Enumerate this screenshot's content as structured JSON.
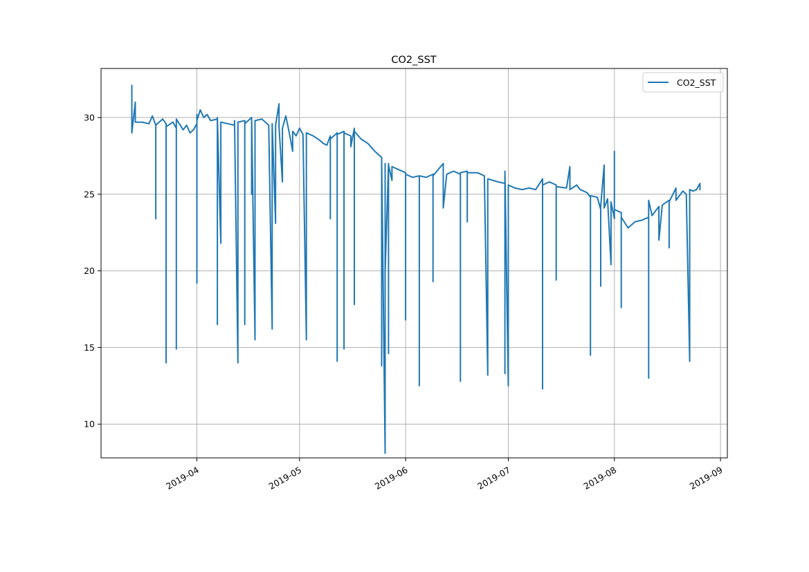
{
  "chart_data": {
    "type": "line",
    "title": "CO2_SST",
    "xlabel": "",
    "ylabel": "",
    "x_axis_type": "date",
    "xlim": [
      "2019-03-04",
      "2019-09-03"
    ],
    "ylim": [
      7.8,
      33.2
    ],
    "x_ticks": [
      {
        "date": "2019-04-01",
        "label": "2019-04"
      },
      {
        "date": "2019-05-01",
        "label": "2019-05"
      },
      {
        "date": "2019-06-01",
        "label": "2019-06"
      },
      {
        "date": "2019-07-01",
        "label": "2019-07"
      },
      {
        "date": "2019-08-01",
        "label": "2019-08"
      },
      {
        "date": "2019-09-01",
        "label": "2019-09"
      }
    ],
    "y_ticks": [
      10,
      15,
      20,
      25,
      30
    ],
    "grid": true,
    "legend_position": "upper-right",
    "legend": [
      "CO2_SST"
    ],
    "series_color": "#1f77b4",
    "series": [
      {
        "name": "CO2_SST",
        "points": [
          [
            "2019-03-13",
            30.3
          ],
          [
            "2019-03-13",
            32.1
          ],
          [
            "2019-03-13",
            29.0
          ],
          [
            "2019-03-14",
            31.0
          ],
          [
            "2019-03-14",
            29.7
          ],
          [
            "2019-03-16",
            29.7
          ],
          [
            "2019-03-18",
            29.6
          ],
          [
            "2019-03-19",
            30.1
          ],
          [
            "2019-03-20",
            29.5
          ],
          [
            "2019-03-20",
            23.4
          ],
          [
            "2019-03-20",
            29.5
          ],
          [
            "2019-03-22",
            29.9
          ],
          [
            "2019-03-23",
            29.6
          ],
          [
            "2019-03-23",
            29.4
          ],
          [
            "2019-03-23",
            14.0
          ],
          [
            "2019-03-23",
            29.4
          ],
          [
            "2019-03-25",
            29.7
          ],
          [
            "2019-03-26",
            29.3
          ],
          [
            "2019-03-26",
            14.9
          ],
          [
            "2019-03-26",
            29.9
          ],
          [
            "2019-03-28",
            29.2
          ],
          [
            "2019-03-29",
            29.5
          ],
          [
            "2019-03-30",
            29.0
          ],
          [
            "2019-03-31",
            29.2
          ],
          [
            "2019-04-01",
            29.6
          ],
          [
            "2019-04-01",
            30.2
          ],
          [
            "2019-04-01",
            19.2
          ],
          [
            "2019-04-01",
            29.8
          ],
          [
            "2019-04-02",
            30.5
          ],
          [
            "2019-04-03",
            30.0
          ],
          [
            "2019-04-04",
            30.2
          ],
          [
            "2019-04-05",
            29.8
          ],
          [
            "2019-04-07",
            29.9
          ],
          [
            "2019-04-07",
            16.5
          ],
          [
            "2019-04-07",
            30.0
          ],
          [
            "2019-04-08",
            21.8
          ],
          [
            "2019-04-08",
            29.7
          ],
          [
            "2019-04-10",
            29.6
          ],
          [
            "2019-04-12",
            29.5
          ],
          [
            "2019-04-12",
            29.8
          ],
          [
            "2019-04-13",
            14.0
          ],
          [
            "2019-04-13",
            29.7
          ],
          [
            "2019-04-15",
            29.8
          ],
          [
            "2019-04-15",
            16.5
          ],
          [
            "2019-04-15",
            29.6
          ],
          [
            "2019-04-17",
            30.0
          ],
          [
            "2019-04-17",
            25.0
          ],
          [
            "2019-04-17",
            30.0
          ],
          [
            "2019-04-18",
            15.5
          ],
          [
            "2019-04-18",
            29.8
          ],
          [
            "2019-04-20",
            29.9
          ],
          [
            "2019-04-22",
            29.5
          ],
          [
            "2019-04-23",
            16.2
          ],
          [
            "2019-04-23",
            29.6
          ],
          [
            "2019-04-24",
            23.1
          ],
          [
            "2019-04-24",
            29.5
          ],
          [
            "2019-04-25",
            30.9
          ],
          [
            "2019-04-25",
            29.4
          ],
          [
            "2019-04-26",
            25.8
          ],
          [
            "2019-04-26",
            29.3
          ],
          [
            "2019-04-27",
            30.1
          ],
          [
            "2019-04-28",
            29.0
          ],
          [
            "2019-04-29",
            27.8
          ],
          [
            "2019-04-29",
            29.1
          ],
          [
            "2019-04-30",
            28.8
          ],
          [
            "2019-05-01",
            29.3
          ],
          [
            "2019-05-02",
            28.9
          ],
          [
            "2019-05-03",
            15.5
          ],
          [
            "2019-05-03",
            29.0
          ],
          [
            "2019-05-05",
            28.8
          ],
          [
            "2019-05-07",
            28.5
          ],
          [
            "2019-05-08",
            28.3
          ],
          [
            "2019-05-09",
            28.2
          ],
          [
            "2019-05-10",
            28.8
          ],
          [
            "2019-05-10",
            23.4
          ],
          [
            "2019-05-10",
            28.6
          ],
          [
            "2019-05-12",
            29.0
          ],
          [
            "2019-05-12",
            14.1
          ],
          [
            "2019-05-12",
            28.9
          ],
          [
            "2019-05-14",
            29.1
          ],
          [
            "2019-05-14",
            14.9
          ],
          [
            "2019-05-14",
            29.0
          ],
          [
            "2019-05-16",
            28.8
          ],
          [
            "2019-05-16",
            28.1
          ],
          [
            "2019-05-17",
            29.3
          ],
          [
            "2019-05-17",
            17.8
          ],
          [
            "2019-05-17",
            29.1
          ],
          [
            "2019-05-19",
            28.6
          ],
          [
            "2019-05-21",
            28.3
          ],
          [
            "2019-05-23",
            27.8
          ],
          [
            "2019-05-25",
            27.4
          ],
          [
            "2019-05-25",
            13.8
          ],
          [
            "2019-05-25",
            27.3
          ],
          [
            "2019-05-26",
            8.1
          ],
          [
            "2019-05-26",
            27.0
          ],
          [
            "2019-05-26",
            19.9
          ],
          [
            "2019-05-27",
            27.0
          ],
          [
            "2019-05-27",
            14.6
          ],
          [
            "2019-05-27",
            26.9
          ],
          [
            "2019-05-28",
            25.9
          ],
          [
            "2019-05-28",
            26.8
          ],
          [
            "2019-05-30",
            26.6
          ],
          [
            "2019-06-01",
            26.4
          ],
          [
            "2019-06-01",
            16.8
          ],
          [
            "2019-06-01",
            26.3
          ],
          [
            "2019-06-03",
            26.1
          ],
          [
            "2019-06-05",
            26.2
          ],
          [
            "2019-06-05",
            12.5
          ],
          [
            "2019-06-05",
            26.2
          ],
          [
            "2019-06-07",
            26.1
          ],
          [
            "2019-06-09",
            26.3
          ],
          [
            "2019-06-09",
            19.3
          ],
          [
            "2019-06-09",
            26.2
          ],
          [
            "2019-06-12",
            27.0
          ],
          [
            "2019-06-12",
            24.1
          ],
          [
            "2019-06-13",
            26.3
          ],
          [
            "2019-06-15",
            26.5
          ],
          [
            "2019-06-17",
            26.3
          ],
          [
            "2019-06-17",
            12.8
          ],
          [
            "2019-06-17",
            26.4
          ],
          [
            "2019-06-19",
            26.5
          ],
          [
            "2019-06-19",
            23.2
          ],
          [
            "2019-06-19",
            26.4
          ],
          [
            "2019-06-22",
            26.4
          ],
          [
            "2019-06-24",
            26.2
          ],
          [
            "2019-06-25",
            13.2
          ],
          [
            "2019-06-25",
            26.0
          ],
          [
            "2019-06-28",
            25.8
          ],
          [
            "2019-06-30",
            25.7
          ],
          [
            "2019-06-30",
            13.3
          ],
          [
            "2019-06-30",
            26.5
          ],
          [
            "2019-07-01",
            12.5
          ],
          [
            "2019-07-01",
            25.6
          ],
          [
            "2019-07-03",
            25.4
          ],
          [
            "2019-07-05",
            25.3
          ],
          [
            "2019-07-07",
            25.4
          ],
          [
            "2019-07-09",
            25.3
          ],
          [
            "2019-07-11",
            26.0
          ],
          [
            "2019-07-11",
            12.3
          ],
          [
            "2019-07-11",
            25.6
          ],
          [
            "2019-07-13",
            25.8
          ],
          [
            "2019-07-15",
            25.6
          ],
          [
            "2019-07-15",
            19.4
          ],
          [
            "2019-07-15",
            25.5
          ],
          [
            "2019-07-18",
            25.4
          ],
          [
            "2019-07-19",
            26.8
          ],
          [
            "2019-07-19",
            25.3
          ],
          [
            "2019-07-21",
            25.6
          ],
          [
            "2019-07-22",
            25.3
          ],
          [
            "2019-07-24",
            25.1
          ],
          [
            "2019-07-25",
            24.8
          ],
          [
            "2019-07-25",
            14.5
          ],
          [
            "2019-07-25",
            24.9
          ],
          [
            "2019-07-27",
            24.8
          ],
          [
            "2019-07-28",
            24.0
          ],
          [
            "2019-07-28",
            19.0
          ],
          [
            "2019-07-28",
            24.2
          ],
          [
            "2019-07-29",
            26.9
          ],
          [
            "2019-07-29",
            24.1
          ],
          [
            "2019-07-30",
            24.7
          ],
          [
            "2019-07-31",
            20.4
          ],
          [
            "2019-07-31",
            24.5
          ],
          [
            "2019-08-01",
            23.4
          ],
          [
            "2019-08-01",
            27.8
          ],
          [
            "2019-08-01",
            24.0
          ],
          [
            "2019-08-03",
            23.8
          ],
          [
            "2019-08-03",
            17.6
          ],
          [
            "2019-08-03",
            23.5
          ],
          [
            "2019-08-05",
            22.8
          ],
          [
            "2019-08-07",
            23.2
          ],
          [
            "2019-08-09",
            23.3
          ],
          [
            "2019-08-11",
            23.5
          ],
          [
            "2019-08-11",
            13.0
          ],
          [
            "2019-08-11",
            24.6
          ],
          [
            "2019-08-12",
            23.6
          ],
          [
            "2019-08-14",
            24.2
          ],
          [
            "2019-08-14",
            22.0
          ],
          [
            "2019-08-15",
            24.3
          ],
          [
            "2019-08-17",
            24.6
          ],
          [
            "2019-08-17",
            21.5
          ],
          [
            "2019-08-17",
            24.5
          ],
          [
            "2019-08-19",
            25.4
          ],
          [
            "2019-08-19",
            24.6
          ],
          [
            "2019-08-21",
            25.2
          ],
          [
            "2019-08-22",
            25.0
          ],
          [
            "2019-08-23",
            14.1
          ],
          [
            "2019-08-23",
            25.3
          ],
          [
            "2019-08-24",
            25.2
          ],
          [
            "2019-08-25",
            25.3
          ],
          [
            "2019-08-26",
            25.7
          ],
          [
            "2019-08-26",
            25.3
          ]
        ]
      }
    ]
  }
}
